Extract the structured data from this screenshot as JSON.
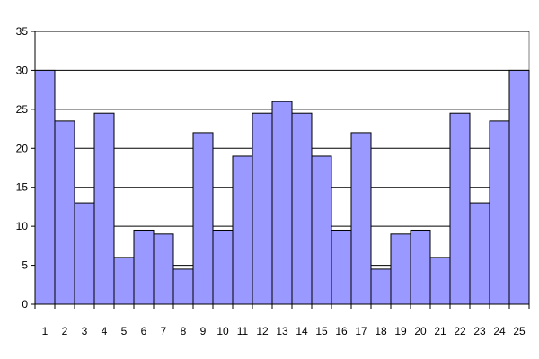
{
  "chart_data": {
    "type": "bar",
    "categories": [
      "1",
      "2",
      "3",
      "4",
      "5",
      "6",
      "7",
      "8",
      "9",
      "10",
      "11",
      "12",
      "13",
      "14",
      "15",
      "16",
      "17",
      "18",
      "19",
      "20",
      "21",
      "22",
      "23",
      "24",
      "25"
    ],
    "values": [
      30,
      23.5,
      13,
      24.5,
      6,
      9.5,
      9,
      4.5,
      22,
      9.5,
      19,
      24.5,
      26,
      24.5,
      19,
      9.5,
      22,
      4.5,
      9,
      9.5,
      6,
      24.5,
      13,
      23.5,
      30
    ],
    "yticks": [
      "0",
      "5",
      "10",
      "15",
      "20",
      "25",
      "30",
      "35"
    ],
    "ylim": [
      0,
      35
    ],
    "grid": true,
    "legend": "none",
    "bar_color": "#9999FF",
    "bar_edge_color": "#000000",
    "title": "",
    "xlabel": "",
    "ylabel": ""
  }
}
